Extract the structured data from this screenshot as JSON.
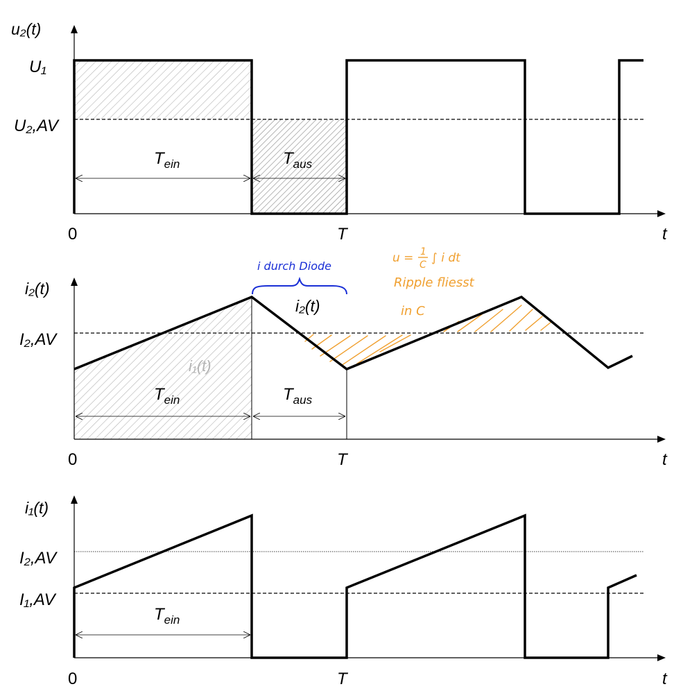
{
  "panels": {
    "voltage": {
      "y_label": "u₂(t)",
      "levels": [
        "U₁",
        "U₂,AV"
      ],
      "x_ticks": [
        "0",
        "T"
      ],
      "x_label": "t",
      "interval_labels": {
        "ein": {
          "main": "T",
          "sub": "ein"
        },
        "aus": {
          "main": "T",
          "sub": "aus"
        }
      }
    },
    "current2": {
      "y_label": "i₂(t)",
      "levels": [
        "I₂,AV"
      ],
      "x_ticks": [
        "0",
        "T"
      ],
      "x_label": "t",
      "curve_label": "i₂(t)",
      "area_label": "i₁(t)",
      "interval_labels": {
        "ein": {
          "main": "T",
          "sub": "ein"
        },
        "aus": {
          "main": "T",
          "sub": "aus"
        }
      }
    },
    "current1": {
      "y_label": "i₁(t)",
      "levels": [
        "I₂,AV",
        "I₁,AV"
      ],
      "x_ticks": [
        "0",
        "T"
      ],
      "x_label": "t",
      "interval_labels": {
        "ein": {
          "main": "T",
          "sub": "ein"
        }
      }
    }
  },
  "annotations": {
    "blue_note": "i durch Diode",
    "orange_formula": [
      "u =",
      "1",
      "C",
      "∫ i dt"
    ],
    "orange_note": [
      "Ripple fliesst",
      "in C"
    ]
  },
  "colors": {
    "line": "#000000",
    "hatch_gray": "#b4b4b4",
    "blue_note": "#1a2fd6",
    "orange_note": "#f0a030"
  }
}
